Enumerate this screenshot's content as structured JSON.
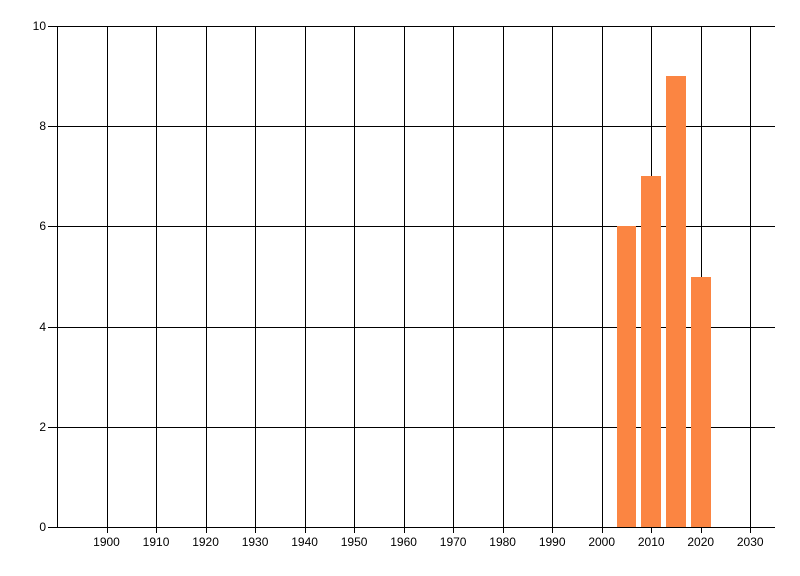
{
  "chart_data": {
    "type": "bar",
    "title": "",
    "xlabel": "",
    "ylabel": "",
    "x": [
      2005,
      2010,
      2015,
      2020
    ],
    "values": [
      6,
      7,
      9,
      5
    ],
    "series_name": "",
    "bar_width_years": 4,
    "xlim": [
      1890,
      2035
    ],
    "ylim": [
      0,
      10
    ],
    "x_ticks": [
      1900,
      1910,
      1920,
      1930,
      1940,
      1950,
      1960,
      1970,
      1980,
      1990,
      2000,
      2010,
      2020,
      2030
    ],
    "x_tick_labels": [
      "1900",
      "1910",
      "1920",
      "1930",
      "1940",
      "1950",
      "1960",
      "1970",
      "1980",
      "1990",
      "2000",
      "2010",
      "2020",
      "2030"
    ],
    "y_ticks": [
      0,
      2,
      4,
      6,
      8,
      10
    ],
    "y_tick_labels": [
      "0",
      "2",
      "4",
      "6",
      "8",
      "10"
    ],
    "grid": "on",
    "legend": "none",
    "colors": {
      "bar": "#fb8542",
      "gridline": "#000000",
      "tick_text": "#000000",
      "background": "#ffffff"
    }
  }
}
